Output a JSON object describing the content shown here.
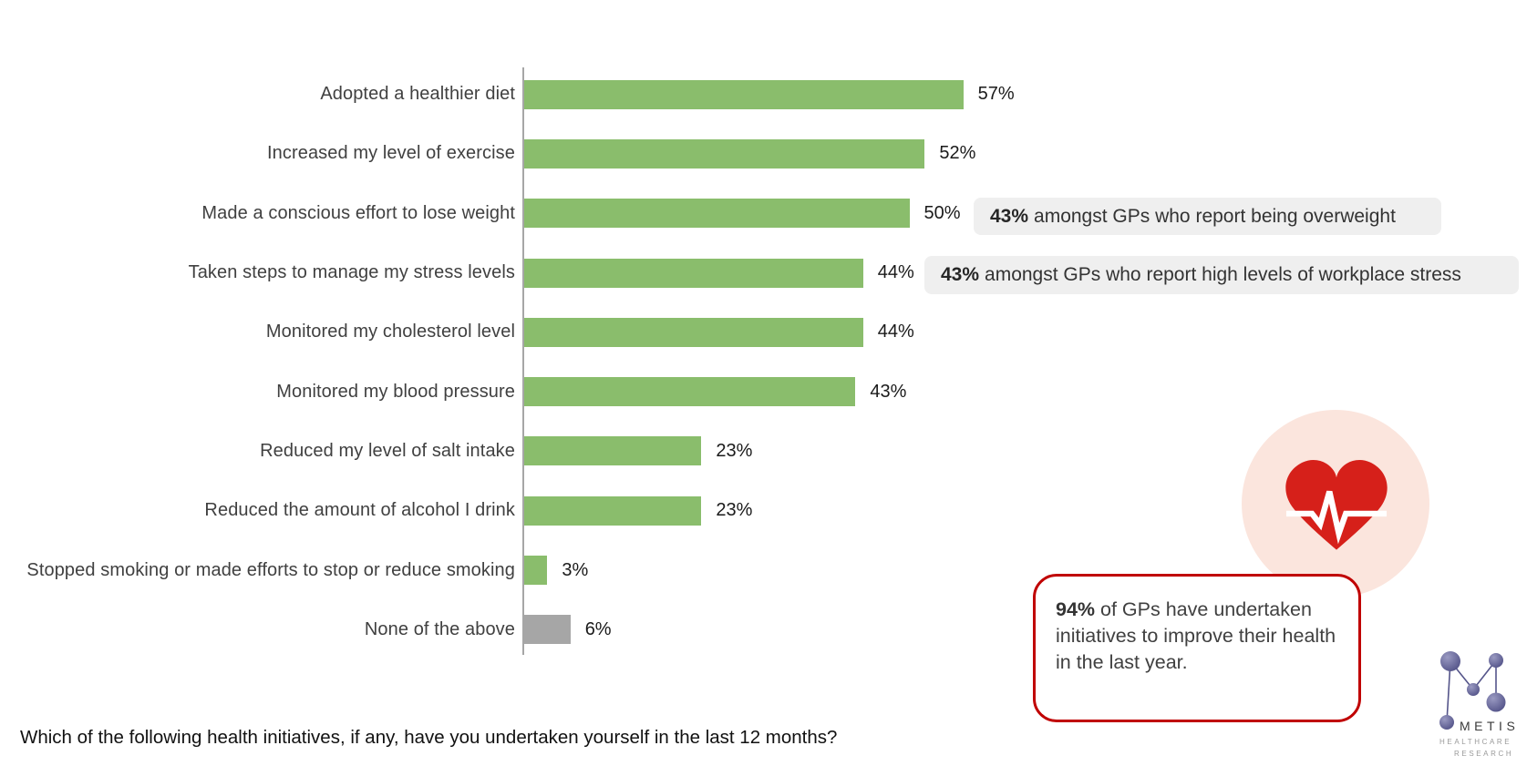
{
  "chart_data": {
    "type": "bar",
    "orientation": "horizontal",
    "title": "",
    "xlabel": "",
    "ylabel": "",
    "xlim": [
      0,
      60
    ],
    "grid": false,
    "axis_color": "#a6a6a6",
    "categories": [
      "Adopted a healthier diet",
      "Increased my level of exercise",
      "Made a conscious effort to lose weight",
      "Taken steps to manage my stress levels",
      "Monitored my cholesterol level",
      "Monitored my blood pressure",
      "Reduced my level of salt intake",
      "Reduced the amount of alcohol I drink",
      "Stopped smoking or made efforts to stop or reduce smoking",
      "None of the above"
    ],
    "values": [
      57,
      52,
      50,
      44,
      44,
      43,
      23,
      23,
      3,
      6
    ],
    "value_labels": [
      "57%",
      "52%",
      "50%",
      "44%",
      "44%",
      "43%",
      "23%",
      "23%",
      "3%",
      "6%"
    ],
    "bar_colors": [
      "#8abd6c",
      "#8abd6c",
      "#8abd6c",
      "#8abd6c",
      "#8abd6c",
      "#8abd6c",
      "#8abd6c",
      "#8abd6c",
      "#8abd6c",
      "#a6a6a6"
    ]
  },
  "annotations": {
    "overweight": {
      "bold": "43%",
      "text": "amongst GPs who report being overweight"
    },
    "stress": {
      "bold": "43%",
      "text": "amongst GPs who report high levels of workplace stress"
    },
    "summary": {
      "bold": "94%",
      "text": "of GPs have undertaken initiatives to improve their health in the last year."
    }
  },
  "question": "Which of the following health initiatives, if any, have you undertaken yourself in the last 12 months?",
  "logo": {
    "name": "METIS",
    "line1": "HEALTHCARE",
    "line2": "RESEARCH"
  },
  "colors": {
    "bar_green": "#8abd6c",
    "bar_gray": "#a6a6a6",
    "callout_bg": "#efefef",
    "heart_red": "#d6201a",
    "heart_circle_pink": "#fbe5dd",
    "summary_border_red": "#c00000",
    "logo_node_purple": "#55558a",
    "text_dark": "#404040"
  }
}
